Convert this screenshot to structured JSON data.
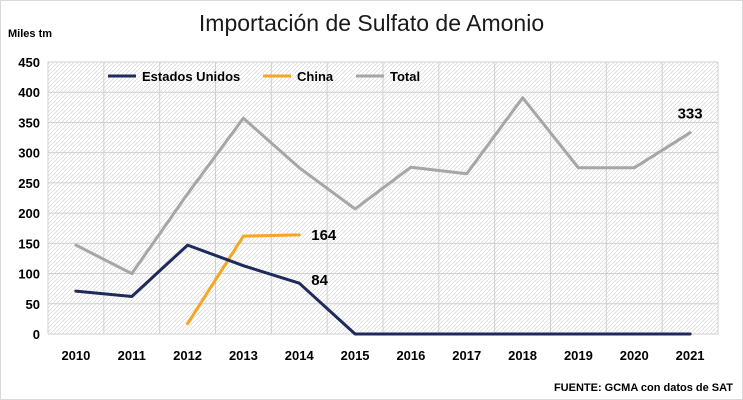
{
  "chart_data": {
    "type": "line",
    "title": "Importación de Sulfato de Amonio",
    "ylabel": "Miles tm",
    "xlabel": "",
    "source": "FUENTE: GCMA con datos de SAT",
    "ylim": [
      0,
      450
    ],
    "yticks": [
      0,
      50,
      100,
      150,
      200,
      250,
      300,
      350,
      400,
      450
    ],
    "categories": [
      "2010",
      "2011",
      "2012",
      "2013",
      "2014",
      "2015",
      "2016",
      "2017",
      "2018",
      "2019",
      "2020",
      "2021"
    ],
    "grid": "horizontal-and-vertical",
    "legend": "top-left",
    "series": [
      {
        "name": "Estados Unidos",
        "color": "#1f2a5c",
        "values": [
          71,
          62,
          147,
          113,
          84,
          0,
          0,
          0,
          0,
          0,
          0,
          0
        ],
        "labels": [
          {
            "index": 4,
            "text": "84"
          }
        ]
      },
      {
        "name": "China",
        "color": "#f5a623",
        "values": [
          null,
          null,
          17,
          162,
          164,
          null,
          null,
          null,
          null,
          null,
          null,
          null
        ],
        "labels": [
          {
            "index": 4,
            "text": "164"
          }
        ]
      },
      {
        "name": "Total",
        "color": "#a6a6a6",
        "values": [
          147,
          100,
          232,
          357,
          275,
          207,
          276,
          265,
          391,
          275,
          275,
          333
        ],
        "labels": [
          {
            "index": 11,
            "text": "333"
          }
        ]
      }
    ]
  }
}
